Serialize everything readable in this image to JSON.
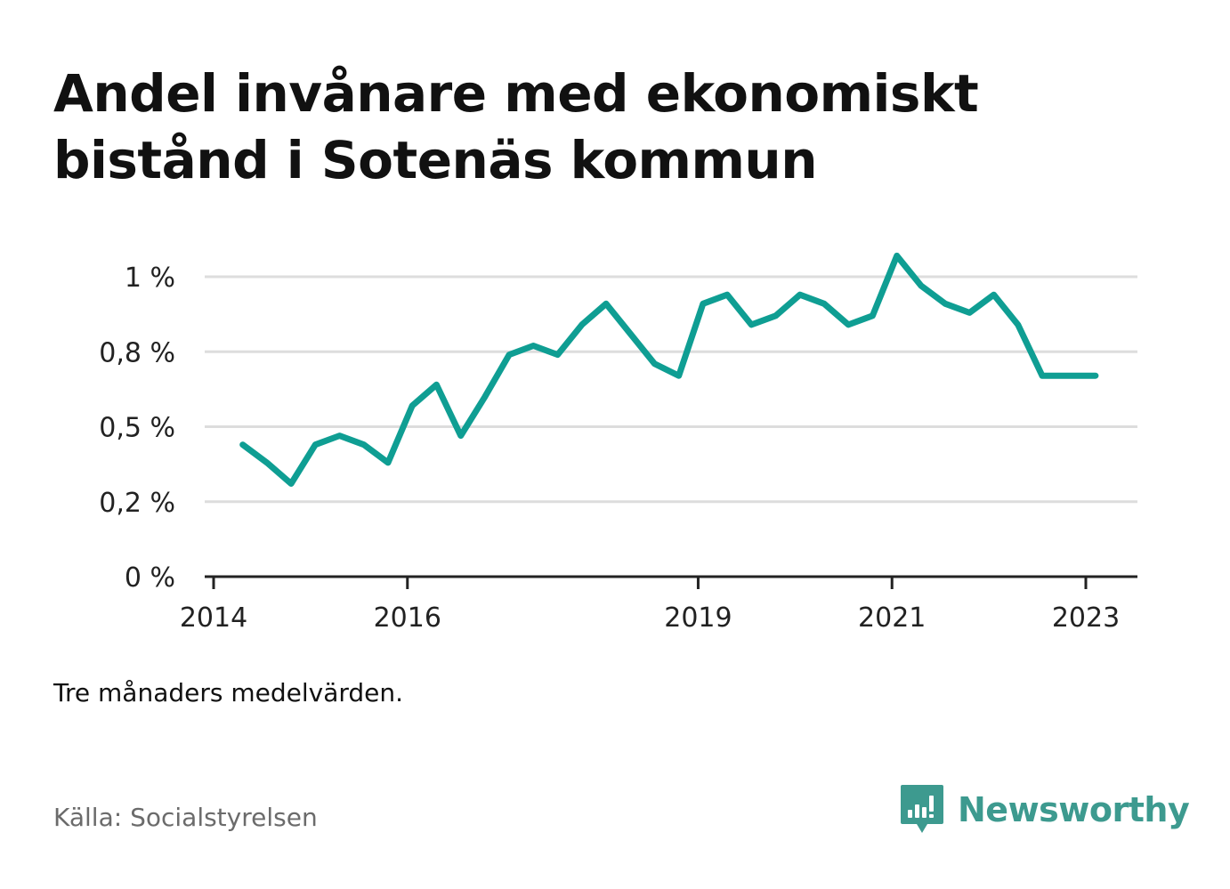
{
  "title": "Andel invånare med ekonomiskt bistånd i Sotenäs kommun",
  "note": "Tre månaders medelvärden.",
  "source": "Källa: Socialstyrelsen",
  "brand": {
    "name": "Newsworthy",
    "color": "#3d9a8f"
  },
  "chart_data": {
    "type": "line",
    "title": "Andel invånare med ekonomiskt bistånd i Sotenäs kommun",
    "xlabel": "",
    "ylabel": "",
    "ylim": [
      0,
      1.0
    ],
    "xlim": [
      2014,
      2023.6
    ],
    "grid": true,
    "line_color": "#0f9e93",
    "y_ticks": [
      {
        "value": 0,
        "label": "0 %"
      },
      {
        "value": 0.25,
        "label": "0,2 %"
      },
      {
        "value": 0.5,
        "label": "0,5 %"
      },
      {
        "value": 0.75,
        "label": "0,8 %"
      },
      {
        "value": 1.0,
        "label": "1 %"
      }
    ],
    "x_ticks": [
      {
        "value": 2014,
        "label": "2014"
      },
      {
        "value": 2016,
        "label": "2016"
      },
      {
        "value": 2019,
        "label": "2019"
      },
      {
        "value": 2021,
        "label": "2021"
      },
      {
        "value": 2023,
        "label": "2023"
      }
    ],
    "x": [
      2014.3,
      2014.55,
      2014.8,
      2015.05,
      2015.3,
      2015.55,
      2015.8,
      2016.05,
      2016.3,
      2016.55,
      2016.8,
      2017.05,
      2017.3,
      2017.55,
      2017.8,
      2018.05,
      2018.3,
      2018.55,
      2018.8,
      2019.05,
      2019.3,
      2019.55,
      2019.8,
      2020.05,
      2020.3,
      2020.55,
      2020.8,
      2021.05,
      2021.3,
      2021.55,
      2021.8,
      2022.05,
      2022.3,
      2022.55,
      2022.8,
      2023.05,
      2023.1
    ],
    "values": [
      0.44,
      0.38,
      0.31,
      0.44,
      0.47,
      0.44,
      0.38,
      0.57,
      0.64,
      0.47,
      0.6,
      0.74,
      0.77,
      0.74,
      0.84,
      0.91,
      0.81,
      0.71,
      0.67,
      0.91,
      0.94,
      0.84,
      0.87,
      0.94,
      0.91,
      0.84,
      0.87,
      1.07,
      0.97,
      0.91,
      0.88,
      0.94,
      0.84,
      0.67,
      0.67,
      0.67,
      0.67
    ]
  }
}
